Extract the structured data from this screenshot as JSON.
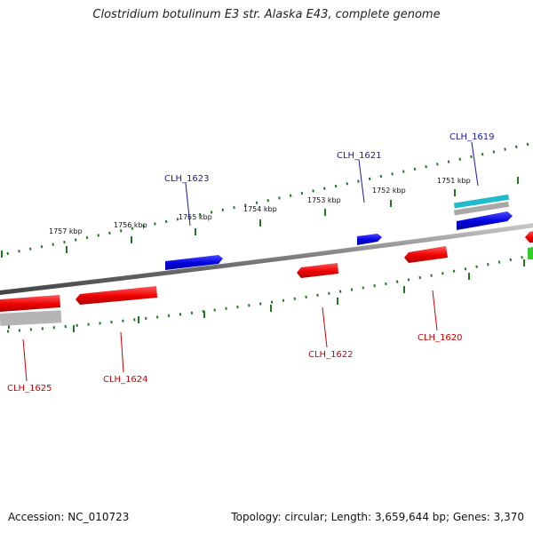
{
  "title": "Clostridium botulinum E3 str. Alaska E43, complete genome",
  "footer": {
    "accession": "Accession: NC_010723",
    "summary": "Topology: circular; Length: 3,659,644 bp; Genes: 3,370"
  },
  "colors": {
    "forward_gene": "#0000dd",
    "reverse_gene": "#ee0000",
    "forward_label": "#1a1aa0",
    "reverse_label": "#cc0000",
    "backbone": "#808080",
    "tick": "#1f7a1f",
    "rna": "#22bbcc",
    "pseudo": "#b0b0b0",
    "green_feature": "#33cc33"
  },
  "kbp_labels": [
    {
      "text": "1757 kbp"
    },
    {
      "text": "1756 kbp"
    },
    {
      "text": "1755 kbp"
    },
    {
      "text": "1754 kbp"
    },
    {
      "text": "1753 kbp"
    },
    {
      "text": "1752 kbp"
    },
    {
      "text": "1751 kbp"
    }
  ],
  "genes": [
    {
      "label": "CLH_1619",
      "strand": "forward"
    },
    {
      "label": "CLH_1621",
      "strand": "forward"
    },
    {
      "label": "CLH_1623",
      "strand": "forward"
    },
    {
      "label": "CLH_1620",
      "strand": "reverse"
    },
    {
      "label": "CLH_1622",
      "strand": "reverse"
    },
    {
      "label": "CLH_1624",
      "strand": "reverse"
    },
    {
      "label": "CLH_1625",
      "strand": "reverse"
    }
  ]
}
